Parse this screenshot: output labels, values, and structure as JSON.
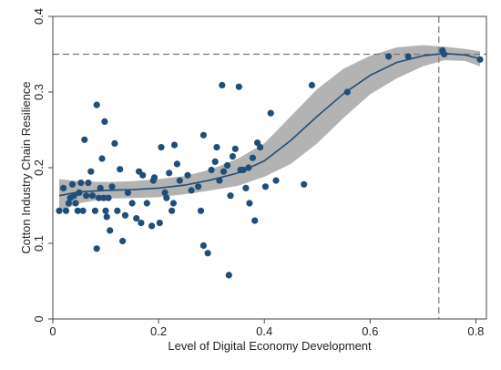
{
  "chart_data": {
    "type": "scatter",
    "title": "",
    "xlabel": "Level of Digital Economy Development",
    "ylabel": "Cotton Industry Chain Resilience",
    "xlim": [
      0,
      0.82
    ],
    "ylim": [
      0,
      0.4
    ],
    "x_ticks": [
      {
        "value": 0,
        "label": "0"
      },
      {
        "value": 0.2,
        "label": "0.2"
      },
      {
        "value": 0.4,
        "label": "0.4"
      },
      {
        "value": 0.6,
        "label": "0.6"
      },
      {
        "value": 0.8,
        "label": "0.8"
      }
    ],
    "y_ticks": [
      {
        "value": 0,
        "label": "0"
      },
      {
        "value": 0.1,
        "label": "0.1"
      },
      {
        "value": 0.2,
        "label": "0.2"
      },
      {
        "value": 0.3,
        "label": "0.3"
      },
      {
        "value": 0.4,
        "label": "0.4"
      }
    ],
    "grid": false,
    "colors": {
      "points": "#1f4e79",
      "fit_line": "#1f4e79",
      "band": "#b3b3b3",
      "ref_line": "#777777"
    },
    "reference_lines": {
      "vertical_x": 0.73,
      "horizontal_y": 0.35
    },
    "points": [
      {
        "x": 0.012,
        "y": 0.143
      },
      {
        "x": 0.02,
        "y": 0.173
      },
      {
        "x": 0.025,
        "y": 0.143
      },
      {
        "x": 0.03,
        "y": 0.153
      },
      {
        "x": 0.033,
        "y": 0.16
      },
      {
        "x": 0.037,
        "y": 0.178
      },
      {
        "x": 0.04,
        "y": 0.163
      },
      {
        "x": 0.043,
        "y": 0.153
      },
      {
        "x": 0.047,
        "y": 0.143
      },
      {
        "x": 0.05,
        "y": 0.167
      },
      {
        "x": 0.053,
        "y": 0.18
      },
      {
        "x": 0.057,
        "y": 0.143
      },
      {
        "x": 0.06,
        "y": 0.237
      },
      {
        "x": 0.063,
        "y": 0.163
      },
      {
        "x": 0.067,
        "y": 0.18
      },
      {
        "x": 0.072,
        "y": 0.195
      },
      {
        "x": 0.075,
        "y": 0.163
      },
      {
        "x": 0.08,
        "y": 0.143
      },
      {
        "x": 0.083,
        "y": 0.283
      },
      {
        "x": 0.083,
        "y": 0.093
      },
      {
        "x": 0.087,
        "y": 0.16
      },
      {
        "x": 0.09,
        "y": 0.173
      },
      {
        "x": 0.093,
        "y": 0.212
      },
      {
        "x": 0.096,
        "y": 0.16
      },
      {
        "x": 0.098,
        "y": 0.261
      },
      {
        "x": 0.1,
        "y": 0.143
      },
      {
        "x": 0.102,
        "y": 0.135
      },
      {
        "x": 0.105,
        "y": 0.16
      },
      {
        "x": 0.108,
        "y": 0.117
      },
      {
        "x": 0.112,
        "y": 0.175
      },
      {
        "x": 0.117,
        "y": 0.232
      },
      {
        "x": 0.122,
        "y": 0.143
      },
      {
        "x": 0.127,
        "y": 0.198
      },
      {
        "x": 0.132,
        "y": 0.103
      },
      {
        "x": 0.137,
        "y": 0.137
      },
      {
        "x": 0.142,
        "y": 0.167
      },
      {
        "x": 0.15,
        "y": 0.153
      },
      {
        "x": 0.158,
        "y": 0.133
      },
      {
        "x": 0.163,
        "y": 0.195
      },
      {
        "x": 0.167,
        "y": 0.127
      },
      {
        "x": 0.17,
        "y": 0.19
      },
      {
        "x": 0.178,
        "y": 0.153
      },
      {
        "x": 0.187,
        "y": 0.123
      },
      {
        "x": 0.19,
        "y": 0.183
      },
      {
        "x": 0.192,
        "y": 0.187
      },
      {
        "x": 0.202,
        "y": 0.127
      },
      {
        "x": 0.205,
        "y": 0.227
      },
      {
        "x": 0.212,
        "y": 0.167
      },
      {
        "x": 0.215,
        "y": 0.16
      },
      {
        "x": 0.22,
        "y": 0.193
      },
      {
        "x": 0.225,
        "y": 0.143
      },
      {
        "x": 0.228,
        "y": 0.153
      },
      {
        "x": 0.23,
        "y": 0.23
      },
      {
        "x": 0.235,
        "y": 0.205
      },
      {
        "x": 0.24,
        "y": 0.183
      },
      {
        "x": 0.255,
        "y": 0.19
      },
      {
        "x": 0.262,
        "y": 0.17
      },
      {
        "x": 0.275,
        "y": 0.175
      },
      {
        "x": 0.28,
        "y": 0.143
      },
      {
        "x": 0.285,
        "y": 0.243
      },
      {
        "x": 0.285,
        "y": 0.097
      },
      {
        "x": 0.293,
        "y": 0.087
      },
      {
        "x": 0.3,
        "y": 0.197
      },
      {
        "x": 0.307,
        "y": 0.208
      },
      {
        "x": 0.31,
        "y": 0.227
      },
      {
        "x": 0.315,
        "y": 0.183
      },
      {
        "x": 0.32,
        "y": 0.309
      },
      {
        "x": 0.323,
        "y": 0.195
      },
      {
        "x": 0.33,
        "y": 0.203
      },
      {
        "x": 0.333,
        "y": 0.058
      },
      {
        "x": 0.336,
        "y": 0.163
      },
      {
        "x": 0.34,
        "y": 0.215
      },
      {
        "x": 0.345,
        "y": 0.225
      },
      {
        "x": 0.352,
        "y": 0.307
      },
      {
        "x": 0.355,
        "y": 0.197
      },
      {
        "x": 0.36,
        "y": 0.197
      },
      {
        "x": 0.365,
        "y": 0.173
      },
      {
        "x": 0.37,
        "y": 0.2
      },
      {
        "x": 0.372,
        "y": 0.153
      },
      {
        "x": 0.378,
        "y": 0.213
      },
      {
        "x": 0.382,
        "y": 0.13
      },
      {
        "x": 0.387,
        "y": 0.233
      },
      {
        "x": 0.392,
        "y": 0.227
      },
      {
        "x": 0.402,
        "y": 0.175
      },
      {
        "x": 0.412,
        "y": 0.272
      },
      {
        "x": 0.422,
        "y": 0.183
      },
      {
        "x": 0.475,
        "y": 0.178
      },
      {
        "x": 0.49,
        "y": 0.309
      },
      {
        "x": 0.557,
        "y": 0.3
      },
      {
        "x": 0.635,
        "y": 0.347
      },
      {
        "x": 0.672,
        "y": 0.347
      },
      {
        "x": 0.737,
        "y": 0.355
      },
      {
        "x": 0.74,
        "y": 0.35
      },
      {
        "x": 0.808,
        "y": 0.343
      }
    ],
    "fit_line": [
      {
        "x": 0.012,
        "y": 0.163
      },
      {
        "x": 0.05,
        "y": 0.168
      },
      {
        "x": 0.1,
        "y": 0.17
      },
      {
        "x": 0.15,
        "y": 0.171
      },
      {
        "x": 0.2,
        "y": 0.173
      },
      {
        "x": 0.25,
        "y": 0.177
      },
      {
        "x": 0.3,
        "y": 0.184
      },
      {
        "x": 0.35,
        "y": 0.193
      },
      {
        "x": 0.4,
        "y": 0.209
      },
      {
        "x": 0.45,
        "y": 0.236
      },
      {
        "x": 0.5,
        "y": 0.268
      },
      {
        "x": 0.55,
        "y": 0.298
      },
      {
        "x": 0.6,
        "y": 0.322
      },
      {
        "x": 0.65,
        "y": 0.339
      },
      {
        "x": 0.7,
        "y": 0.348
      },
      {
        "x": 0.74,
        "y": 0.351
      },
      {
        "x": 0.78,
        "y": 0.349
      },
      {
        "x": 0.808,
        "y": 0.344
      }
    ],
    "confidence_band": [
      {
        "x": 0.012,
        "lo": 0.142,
        "hi": 0.185
      },
      {
        "x": 0.05,
        "lo": 0.153,
        "hi": 0.182
      },
      {
        "x": 0.1,
        "lo": 0.159,
        "hi": 0.181
      },
      {
        "x": 0.15,
        "lo": 0.16,
        "hi": 0.182
      },
      {
        "x": 0.2,
        "lo": 0.161,
        "hi": 0.185
      },
      {
        "x": 0.25,
        "lo": 0.165,
        "hi": 0.189
      },
      {
        "x": 0.3,
        "lo": 0.17,
        "hi": 0.198
      },
      {
        "x": 0.35,
        "lo": 0.176,
        "hi": 0.212
      },
      {
        "x": 0.4,
        "lo": 0.188,
        "hi": 0.232
      },
      {
        "x": 0.45,
        "lo": 0.205,
        "hi": 0.268
      },
      {
        "x": 0.5,
        "lo": 0.232,
        "hi": 0.304
      },
      {
        "x": 0.55,
        "lo": 0.266,
        "hi": 0.331
      },
      {
        "x": 0.6,
        "lo": 0.297,
        "hi": 0.348
      },
      {
        "x": 0.65,
        "lo": 0.318,
        "hi": 0.359
      },
      {
        "x": 0.7,
        "lo": 0.334,
        "hi": 0.362
      },
      {
        "x": 0.74,
        "lo": 0.342,
        "hi": 0.36
      },
      {
        "x": 0.78,
        "lo": 0.341,
        "hi": 0.357
      },
      {
        "x": 0.808,
        "lo": 0.334,
        "hi": 0.354
      }
    ]
  }
}
